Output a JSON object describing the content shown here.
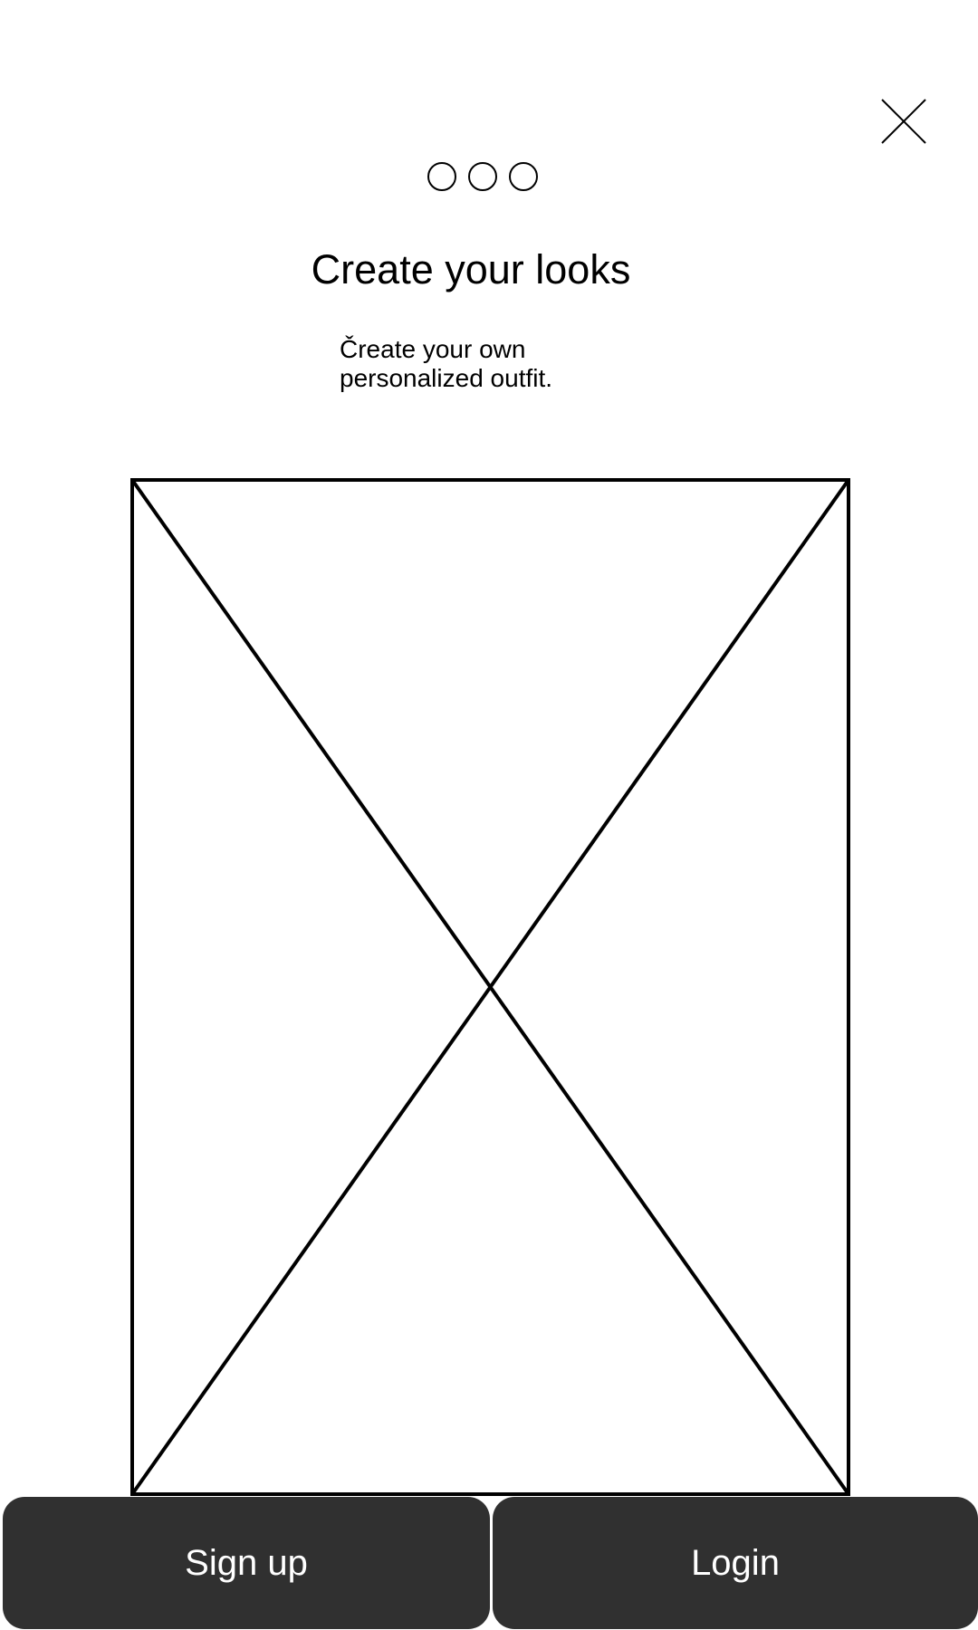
{
  "header": {
    "close_icon": "close-icon"
  },
  "pagination": {
    "count": 3,
    "icon": "circle-outline-icon"
  },
  "onboarding": {
    "title": "Create your looks",
    "subtitle_line1": "Čreate your own",
    "subtitle_line2": "personalized outfit.",
    "image_icon": "image-placeholder-icon"
  },
  "actions": {
    "signup_label": "Sign up",
    "login_label": "Login"
  },
  "colors": {
    "button_bg": "#303030",
    "button_text": "#ffffff",
    "background": "#ffffff",
    "stroke": "#000000"
  }
}
